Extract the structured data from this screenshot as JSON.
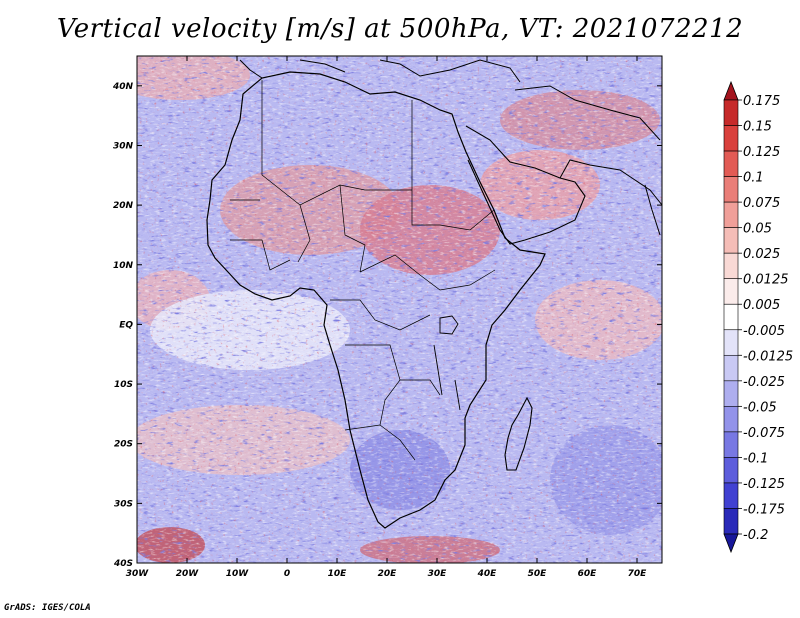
{
  "title": "Vertical velocity [m/s] at 500hPa, VT: 2021072212",
  "footer": "GrADS: IGES/COLA",
  "chart_data": {
    "type": "heatmap",
    "title": "Vertical velocity [m/s] at 500hPa, VT: 2021072212",
    "variable": "Vertical velocity",
    "units": "m/s",
    "level": "500hPa",
    "valid_time": "2021072212",
    "lon_range": [
      -30,
      75
    ],
    "lat_range": [
      -40,
      45
    ],
    "x_ticks": [
      {
        "lon": -30,
        "label": "30W"
      },
      {
        "lon": -20,
        "label": "20W"
      },
      {
        "lon": -10,
        "label": "10W"
      },
      {
        "lon": 0,
        "label": "0"
      },
      {
        "lon": 10,
        "label": "10E"
      },
      {
        "lon": 20,
        "label": "20E"
      },
      {
        "lon": 30,
        "label": "30E"
      },
      {
        "lon": 40,
        "label": "40E"
      },
      {
        "lon": 50,
        "label": "50E"
      },
      {
        "lon": 60,
        "label": "60E"
      },
      {
        "lon": 70,
        "label": "70E"
      }
    ],
    "y_ticks": [
      {
        "lat": 40,
        "label": "40N"
      },
      {
        "lat": 30,
        "label": "30N"
      },
      {
        "lat": 20,
        "label": "20N"
      },
      {
        "lat": 10,
        "label": "10N"
      },
      {
        "lat": 0,
        "label": "EQ"
      },
      {
        "lat": -10,
        "label": "10S"
      },
      {
        "lat": -20,
        "label": "20S"
      },
      {
        "lat": -30,
        "label": "30S"
      },
      {
        "lat": -40,
        "label": "40S"
      }
    ],
    "colorbar": {
      "bins": [
        {
          "color": "#a4141e",
          "label": "0.175"
        },
        {
          "color": "#c62a2a",
          "label": "0.15"
        },
        {
          "color": "#d9403c",
          "label": "0.125"
        },
        {
          "color": "#e25b55",
          "label": "0.1"
        },
        {
          "color": "#ea7e78",
          "label": "0.075"
        },
        {
          "color": "#f09f99",
          "label": "0.05"
        },
        {
          "color": "#f5bdb7",
          "label": "0.025"
        },
        {
          "color": "#f9d9d5",
          "label": "0.0125"
        },
        {
          "color": "#fbeceb",
          "label": "0.005"
        },
        {
          "color": "#ffffff",
          "label": "-0.005"
        },
        {
          "color": "#e3e3f9",
          "label": "-0.0125"
        },
        {
          "color": "#c9c9f4",
          "label": "-0.025"
        },
        {
          "color": "#aeaeef",
          "label": "-0.05"
        },
        {
          "color": "#9393ea",
          "label": "-0.075"
        },
        {
          "color": "#7878e3",
          "label": "-0.1"
        },
        {
          "color": "#5d5ddc",
          "label": "-0.125"
        },
        {
          "color": "#4141d2",
          "label": "-0.175"
        },
        {
          "color": "#2a2ab9",
          "label": "-0.2"
        },
        {
          "color": "#17179a",
          "label": ""
        }
      ]
    }
  }
}
